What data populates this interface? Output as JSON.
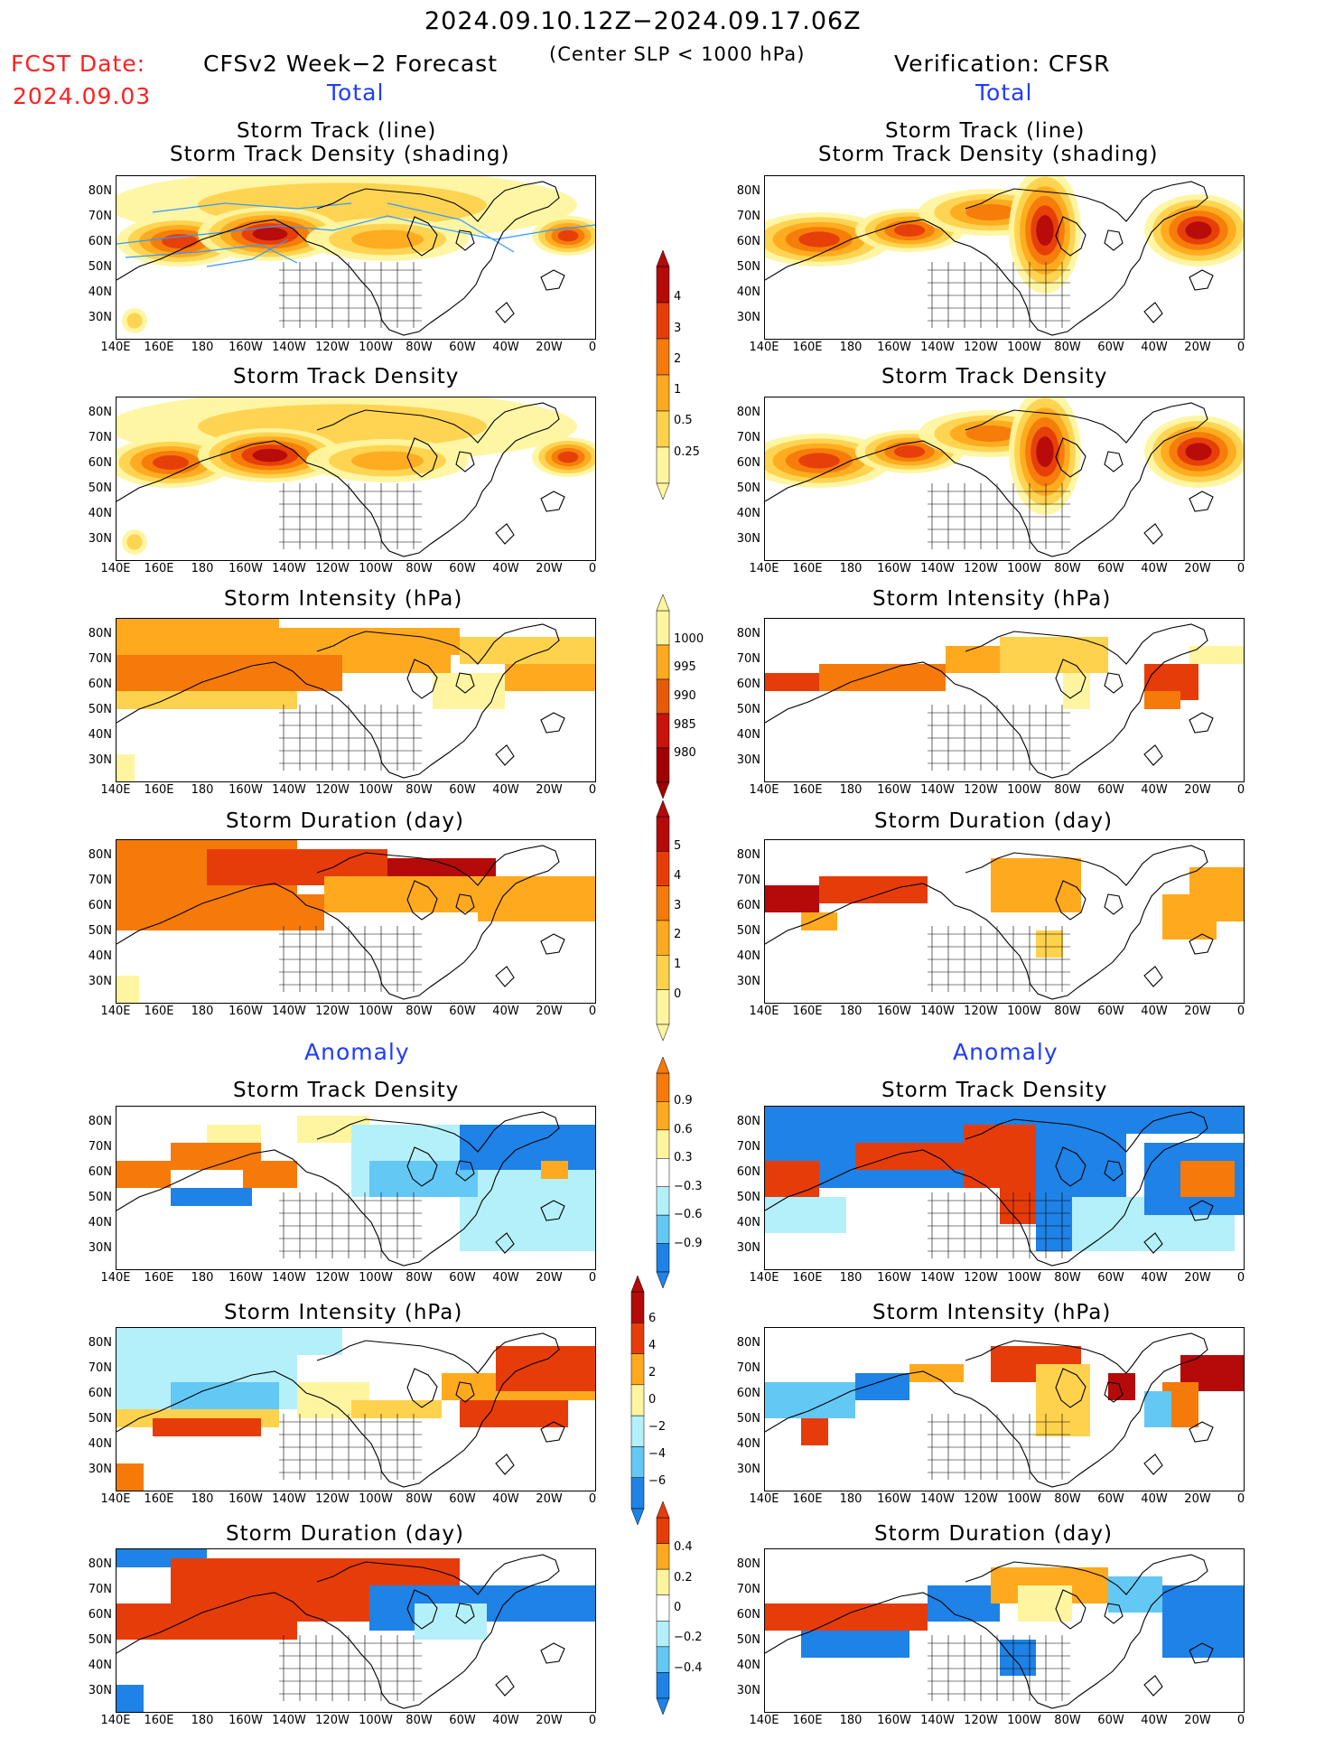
{
  "header": {
    "date_range": "2024.09.10.12Z−2024.09.17.06Z",
    "fcst_date_label": "FCST Date:",
    "fcst_date_value": "2024.09.03",
    "forecast_title": "CFSv2 Week−2 Forecast",
    "slp_note": "(Center SLP < 1000 hPa)",
    "verification_title": "Verification: CFSR"
  },
  "sections": {
    "total": "Total",
    "anomaly": "Anomaly"
  },
  "panel_titles": {
    "track_line": "Storm Track (line)",
    "track_density_shading": "Storm Track Density (shading)",
    "track_density": "Storm Track Density",
    "intensity": "Storm Intensity (hPa)",
    "duration": "Storm Duration (day)"
  },
  "axes": {
    "lat_labels": [
      "80N",
      "70N",
      "60N",
      "50N",
      "40N",
      "30N"
    ],
    "lon_labels": [
      "140E",
      "160E",
      "180",
      "160W",
      "140W",
      "120W",
      "100W",
      "80W",
      "60W",
      "40W",
      "20W",
      "0"
    ]
  },
  "colorbars": {
    "density_total": [
      "4",
      "3",
      "2",
      "1",
      "0.5",
      "0.25"
    ],
    "intensity_total": [
      "1000",
      "995",
      "990",
      "985",
      "980"
    ],
    "duration_total": [
      "5",
      "4",
      "3",
      "2",
      "1",
      "0"
    ],
    "density_anom": [
      "0.9",
      "0.6",
      "0.3",
      "−0.3",
      "−0.6",
      "−0.9"
    ],
    "intensity_anom": [
      "6",
      "4",
      "2",
      "0",
      "−2",
      "−4",
      "−6"
    ],
    "duration_anom": [
      "0.4",
      "0.2",
      "0",
      "−0.2",
      "−0.4"
    ]
  },
  "colors": {
    "warm": [
      "#fff5a0",
      "#ffd24d",
      "#ffaa1e",
      "#f57a0a",
      "#e63c0a",
      "#b40a0a"
    ],
    "cool": [
      "#b4f0fa",
      "#64c8f5",
      "#1e82e6"
    ],
    "track_line": "#3399ff"
  }
}
